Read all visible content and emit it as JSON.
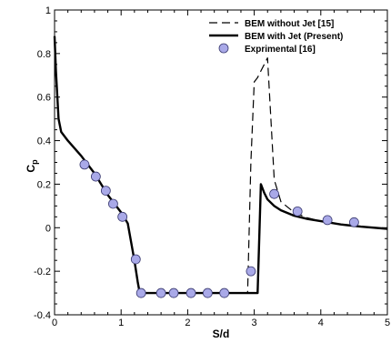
{
  "chart_data": {
    "type": "line",
    "title": "",
    "xlabel": "S/d",
    "ylabel": "Cp",
    "ylabel_main": "C",
    "ylabel_sub": "p",
    "xlim": [
      0,
      5
    ],
    "ylim": [
      -0.4,
      1.0
    ],
    "xticks": [
      0,
      1,
      2,
      3,
      4,
      5
    ],
    "xtick_labels": [
      "0",
      "1",
      "2",
      "3",
      "4",
      "5"
    ],
    "yticks": [
      -0.4,
      -0.2,
      0,
      0.2,
      0.4,
      0.6,
      0.8,
      1.0
    ],
    "ytick_labels": [
      "-0.4",
      "-0.2",
      "0",
      "0.2",
      "0.4",
      "0.6",
      "0.8",
      "1"
    ],
    "grid": false,
    "legend_position": "top-right",
    "series": [
      {
        "name": "BEM without Jet [15]",
        "style": "dashed",
        "color": "#000000",
        "x": [
          0.0,
          0.02,
          0.06,
          0.1,
          0.2,
          0.4,
          0.6,
          0.8,
          1.0,
          1.1,
          1.2,
          1.25,
          1.28,
          1.3,
          2.0,
          2.9,
          2.95,
          3.0,
          3.05,
          3.1,
          3.15,
          3.2,
          3.25,
          3.3,
          3.4,
          3.6,
          3.8,
          4.0,
          4.3,
          4.6,
          5.0
        ],
        "y": [
          0.88,
          0.72,
          0.5,
          0.44,
          0.4,
          0.33,
          0.25,
          0.15,
          0.07,
          0.02,
          -0.15,
          -0.25,
          -0.3,
          -0.3,
          -0.3,
          -0.3,
          0.3,
          0.67,
          0.69,
          0.72,
          0.75,
          0.78,
          0.5,
          0.22,
          0.12,
          0.07,
          0.045,
          0.03,
          0.015,
          0.005,
          -0.005
        ]
      },
      {
        "name": "BEM with Jet (Present)",
        "style": "solid",
        "color": "#000000",
        "x": [
          0.0,
          0.02,
          0.06,
          0.1,
          0.2,
          0.4,
          0.6,
          0.8,
          1.0,
          1.1,
          1.2,
          1.25,
          1.28,
          1.3,
          2.0,
          3.05,
          3.1,
          3.15,
          3.2,
          3.3,
          3.4,
          3.6,
          3.8,
          4.0,
          4.3,
          4.6,
          5.0
        ],
        "y": [
          0.88,
          0.72,
          0.5,
          0.44,
          0.4,
          0.33,
          0.25,
          0.15,
          0.07,
          0.02,
          -0.15,
          -0.25,
          -0.3,
          -0.3,
          -0.3,
          -0.3,
          0.2,
          0.16,
          0.13,
          0.1,
          0.08,
          0.055,
          0.04,
          0.03,
          0.015,
          0.005,
          -0.005
        ]
      },
      {
        "name": "Exprimental [16]",
        "style": "markers",
        "color": "#a9a9e8",
        "x": [
          0.45,
          0.62,
          0.77,
          0.88,
          1.02,
          1.22,
          1.3,
          1.6,
          1.79,
          2.05,
          2.3,
          2.55,
          2.95,
          3.3,
          3.65,
          4.1,
          4.5
        ],
        "y": [
          0.29,
          0.235,
          0.17,
          0.11,
          0.05,
          -0.145,
          -0.3,
          -0.3,
          -0.3,
          -0.3,
          -0.3,
          -0.3,
          -0.2,
          0.155,
          0.075,
          0.035,
          0.025
        ]
      }
    ]
  }
}
